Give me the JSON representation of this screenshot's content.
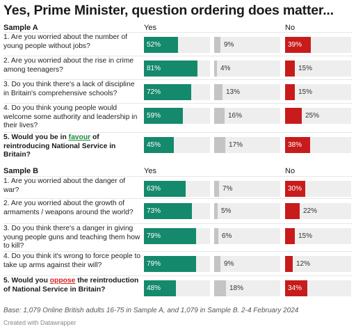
{
  "title": "Yes, Prime Minister, question ordering does matter...",
  "colors": {
    "yes": "#15896c",
    "mid": "#c4c4c4",
    "no": "#c81b1b",
    "track": "#eeeeee"
  },
  "sections": [
    {
      "label": "Sample A",
      "col_yes": "Yes",
      "col_no": "No",
      "rows": [
        {
          "q": "1. Are you worried about the number of young people without jobs?",
          "yes": 52,
          "mid": 9,
          "no": 39
        },
        {
          "q": "2. Are you worried about the rise in crime among teenagers?",
          "yes": 81,
          "mid": 4,
          "no": 15
        },
        {
          "q": "3. Do you think there's a lack of discipline in Britain's comprehensive schools?",
          "yes": 72,
          "mid": 13,
          "no": 15
        },
        {
          "q": "4. Do you think young people would welcome some authority and leadership in their lives?",
          "yes": 59,
          "mid": 16,
          "no": 25
        },
        {
          "q_pre": "5. Would you be in ",
          "q_hl": "favour",
          "q_post": " of reintroducing National Service in Britain?",
          "yes": 45,
          "mid": 17,
          "no": 38
        }
      ]
    },
    {
      "label": "Sample B",
      "col_yes": "Yes",
      "col_no": "No",
      "rows": [
        {
          "q": "1. Are you worried about the danger of war?",
          "yes": 63,
          "mid": 7,
          "no": 30
        },
        {
          "q": "2. Are you worried about the growth of armaments / weapons around the world?",
          "yes": 73,
          "mid": 5,
          "no": 22
        },
        {
          "q": "3. Do you think there's a danger in giving young people guns and teaching them how to kill?",
          "yes": 79,
          "mid": 6,
          "no": 15
        },
        {
          "q": "4. Do you think it's wrong to force people to take up arms against their will?",
          "yes": 79,
          "mid": 9,
          "no": 12
        },
        {
          "q_pre": "5. Would you ",
          "q_hl": "oppose",
          "q_post": " the reintroduction of National Service in Britain?",
          "yes": 48,
          "mid": 18,
          "no": 34
        }
      ]
    }
  ],
  "footer": "Base: 1,079 Online British adults 16-75 in Sample A, and 1,079 in Sample B. 2-4 February 2024",
  "credit": "Created with Datawrapper",
  "chart_data": {
    "type": "bar",
    "stacked_layout": "three separate bar columns per question",
    "title": "Yes, Prime Minister, question ordering does matter...",
    "unit": "%",
    "xlim": [
      0,
      100
    ],
    "panels": [
      {
        "name": "Sample A",
        "categories": [
          "Q1",
          "Q2",
          "Q3",
          "Q4",
          "Q5"
        ],
        "series": [
          {
            "name": "Yes",
            "values": [
              52,
              81,
              72,
              59,
              45
            ]
          },
          {
            "values": [
              9,
              4,
              13,
              16,
              17
            ]
          },
          {
            "name": "No",
            "values": [
              39,
              15,
              15,
              25,
              38
            ]
          }
        ]
      },
      {
        "name": "Sample B",
        "categories": [
          "Q1",
          "Q2",
          "Q3",
          "Q4",
          "Q5"
        ],
        "series": [
          {
            "name": "Yes",
            "values": [
              63,
              73,
              79,
              79,
              48
            ]
          },
          {
            "values": [
              7,
              5,
              6,
              9,
              18
            ]
          },
          {
            "name": "No",
            "values": [
              30,
              22,
              15,
              12,
              34
            ]
          }
        ]
      }
    ]
  }
}
